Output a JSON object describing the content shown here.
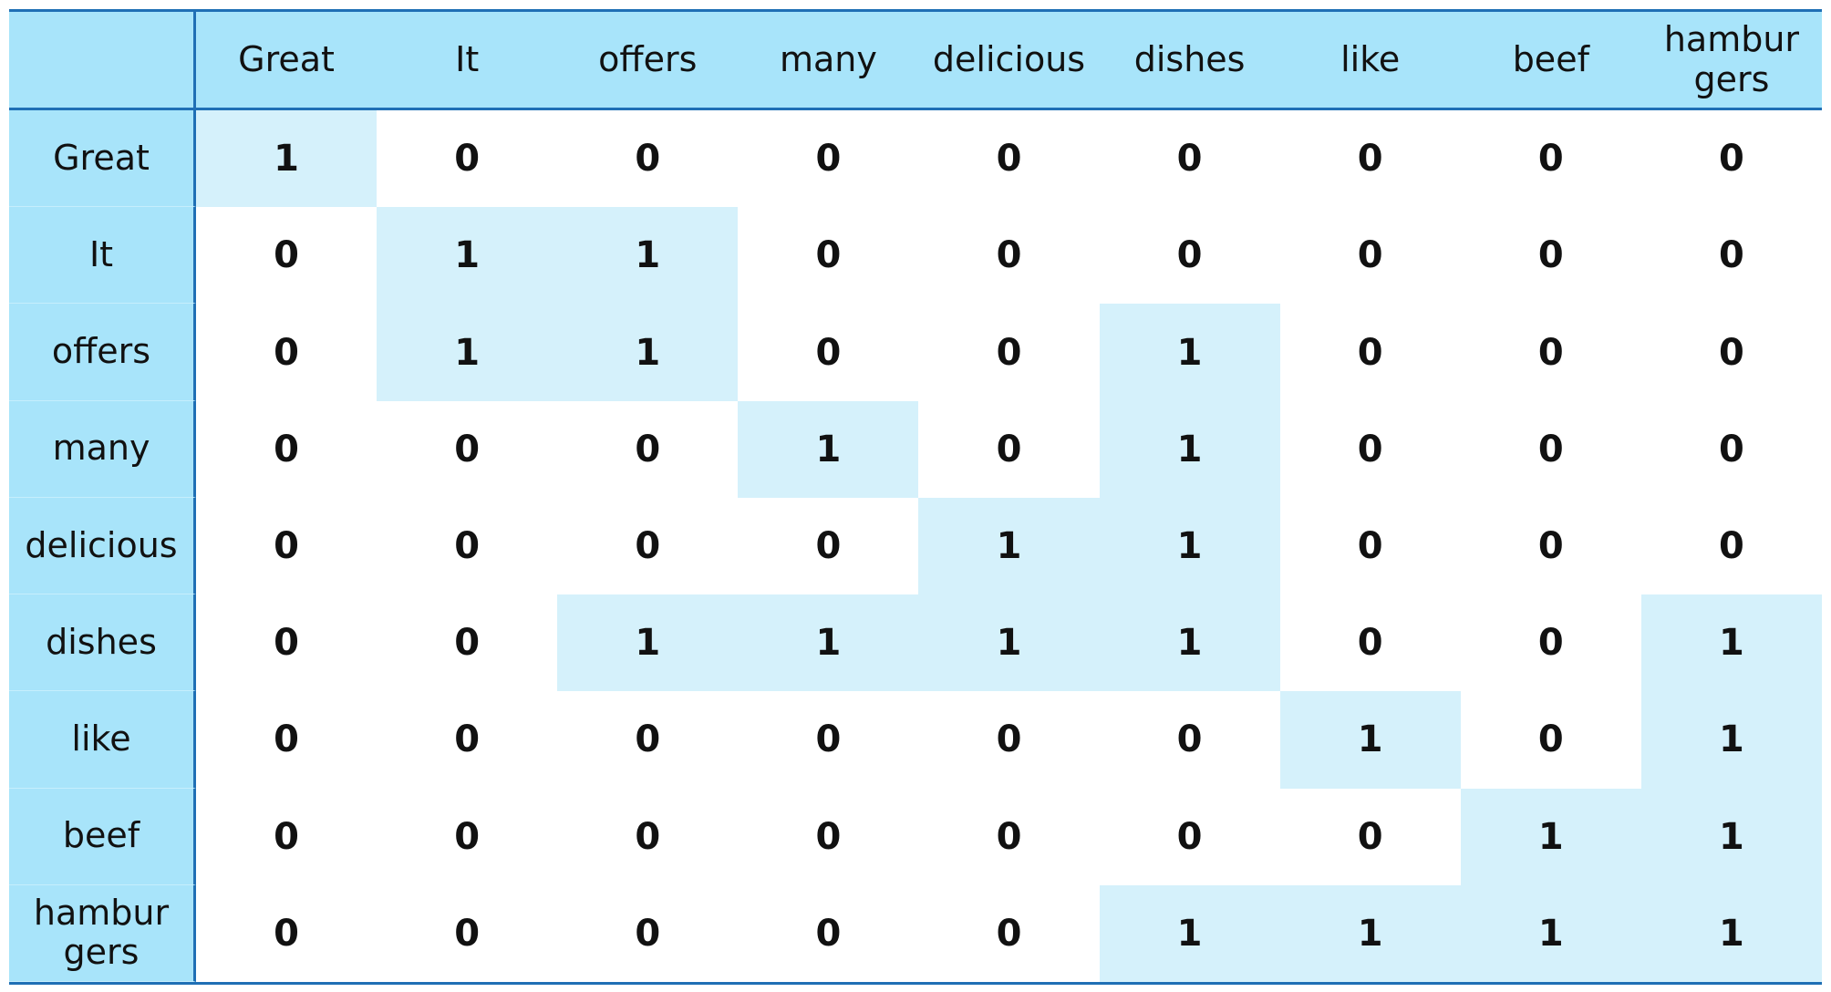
{
  "table": {
    "columns": [
      "Great",
      "It",
      "offers",
      "many",
      "delicious",
      "dishes",
      "like",
      "beef",
      "hambur\ngers"
    ],
    "rows": [
      {
        "label": "Great",
        "values": [
          1,
          0,
          0,
          0,
          0,
          0,
          0,
          0,
          0
        ]
      },
      {
        "label": "It",
        "values": [
          0,
          1,
          1,
          0,
          0,
          0,
          0,
          0,
          0
        ]
      },
      {
        "label": "offers",
        "values": [
          0,
          1,
          1,
          0,
          0,
          1,
          0,
          0,
          0
        ]
      },
      {
        "label": "many",
        "values": [
          0,
          0,
          0,
          1,
          0,
          1,
          0,
          0,
          0
        ]
      },
      {
        "label": "delicious",
        "values": [
          0,
          0,
          0,
          0,
          1,
          1,
          0,
          0,
          0
        ]
      },
      {
        "label": "dishes",
        "values": [
          0,
          0,
          1,
          1,
          1,
          1,
          0,
          0,
          1
        ]
      },
      {
        "label": "like",
        "values": [
          0,
          0,
          0,
          0,
          0,
          0,
          1,
          0,
          1
        ]
      },
      {
        "label": "beef",
        "values": [
          0,
          0,
          0,
          0,
          0,
          0,
          0,
          1,
          1
        ]
      },
      {
        "label": "hambur\ngers",
        "values": [
          0,
          0,
          0,
          0,
          0,
          1,
          1,
          1,
          1
        ]
      }
    ]
  }
}
